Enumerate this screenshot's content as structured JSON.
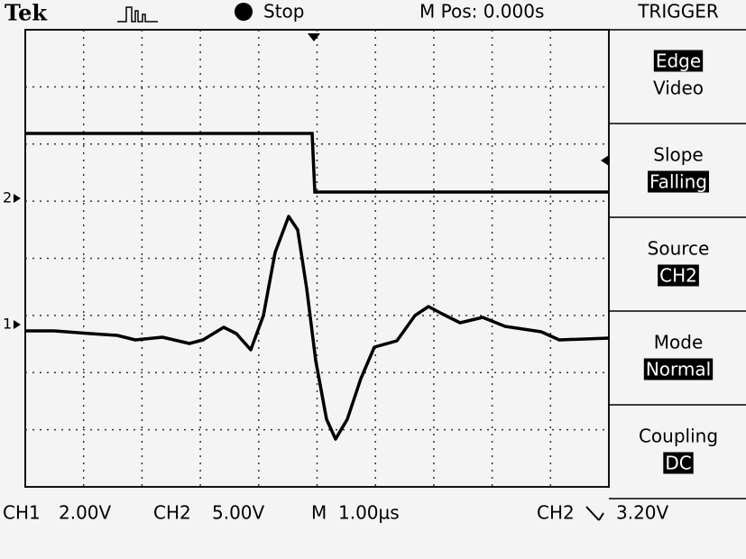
{
  "header": {
    "brand": "Tek",
    "status": "Stop",
    "position": "M Pos: 0.000s"
  },
  "markers": {
    "ch2": "2",
    "ch1": "1"
  },
  "menu": {
    "title": "TRIGGER",
    "items": [
      {
        "selected": "Edge",
        "other": "Video"
      },
      {
        "label": "Slope",
        "value": "Falling"
      },
      {
        "label": "Source",
        "value": "CH2"
      },
      {
        "label": "Mode",
        "value": "Normal"
      },
      {
        "label": "Coupling",
        "value": "DC"
      }
    ]
  },
  "readout": {
    "ch1": "CH1",
    "ch1_scale": "2.00V",
    "ch2": "CH2",
    "ch2_scale": "5.00V",
    "time": "M",
    "time_scale": "1.00µs",
    "trigger_source": "CH2",
    "trigger_level": "3.20V"
  }
}
